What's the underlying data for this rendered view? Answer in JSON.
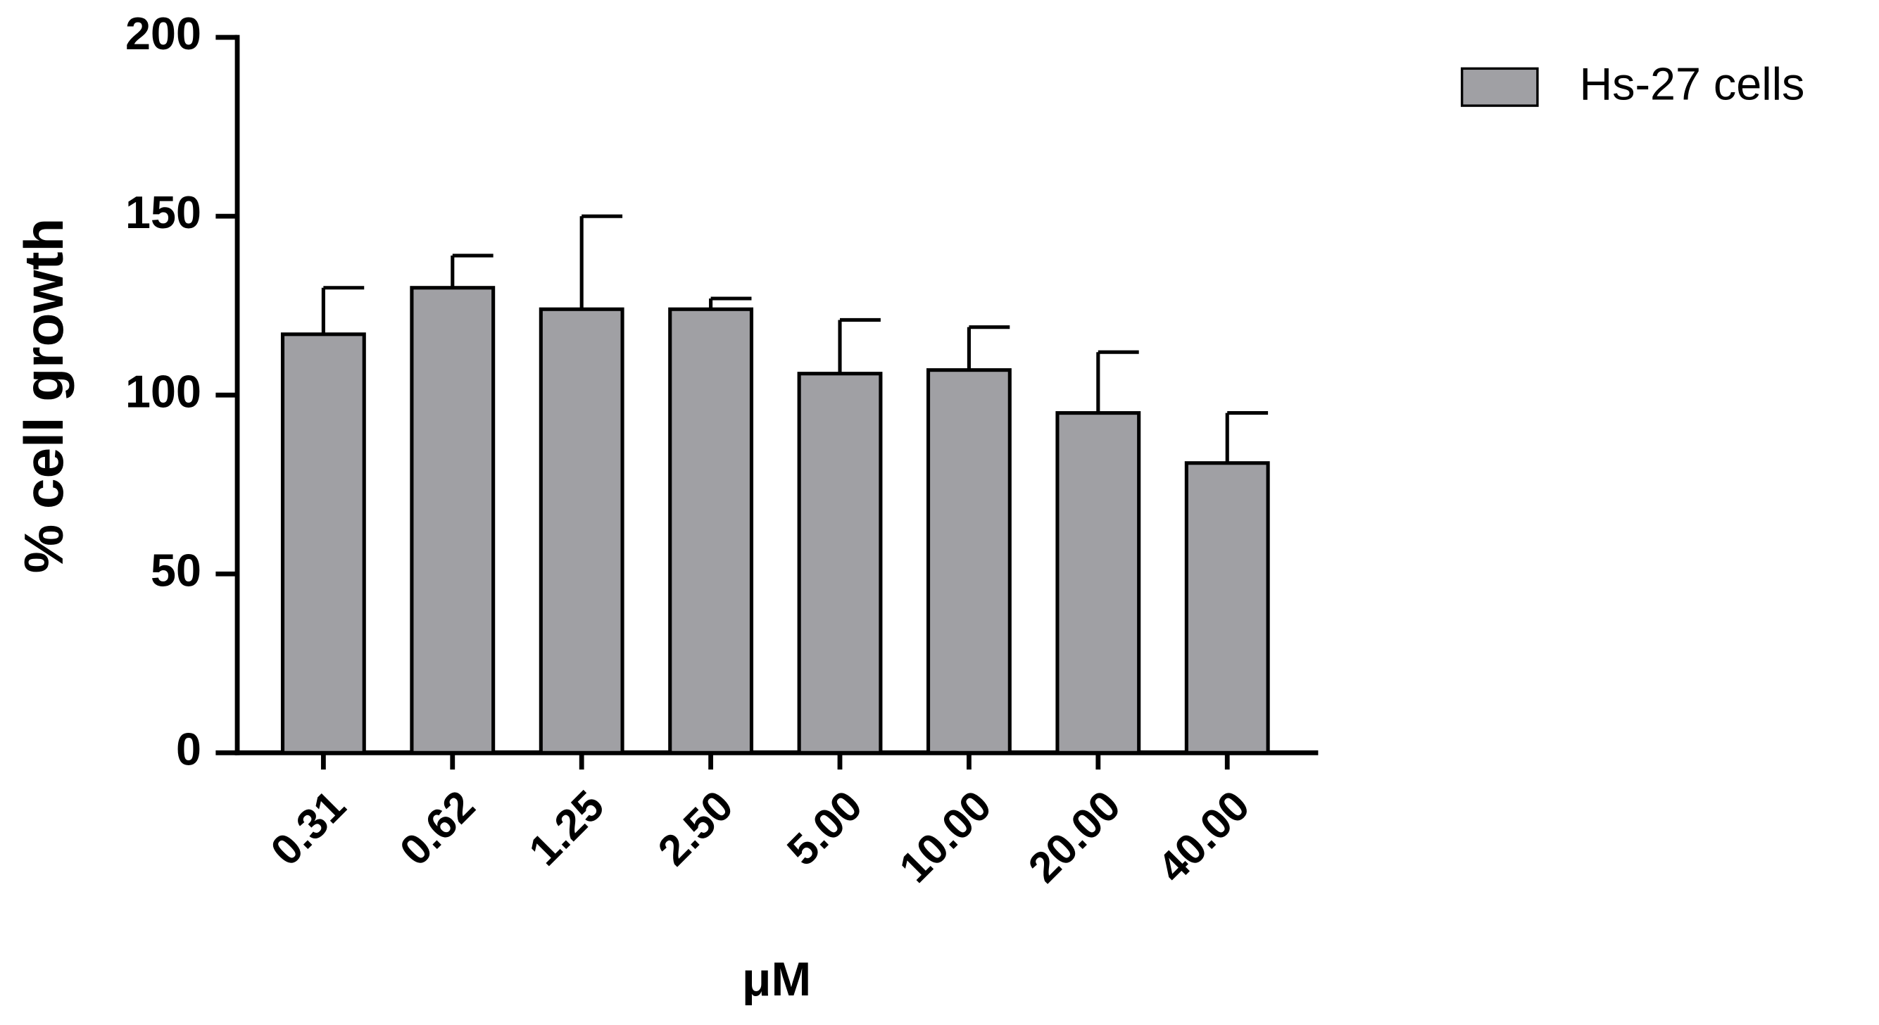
{
  "chart_data": {
    "type": "bar",
    "x_label": "μM",
    "y_label": "% cell growth",
    "categories": [
      "0.31",
      "0.62",
      "1.25",
      "2.50",
      "5.00",
      "10.00",
      "20.00",
      "40.00"
    ],
    "series": [
      {
        "name": "Hs-27 cells",
        "color": "#a0a0a4",
        "values": [
          117,
          130,
          124,
          124,
          106,
          107,
          95,
          81
        ],
        "errors": [
          13,
          9,
          26,
          3,
          15,
          12,
          17,
          14
        ]
      }
    ],
    "ylim": [
      0,
      200
    ],
    "yticks": [
      0,
      50,
      100,
      150,
      200
    ],
    "legend": "top-right"
  }
}
